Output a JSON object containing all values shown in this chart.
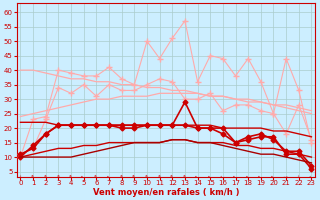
{
  "xlabel": "Vent moyen/en rafales ( km/h )",
  "bg_color": "#cceeff",
  "grid_color": "#aacccc",
  "x_ticks": [
    0,
    1,
    2,
    3,
    4,
    5,
    6,
    7,
    8,
    9,
    10,
    11,
    12,
    13,
    14,
    15,
    16,
    17,
    18,
    19,
    20,
    21,
    22,
    23
  ],
  "y_ticks": [
    5,
    10,
    15,
    20,
    25,
    30,
    35,
    40,
    45,
    50,
    55,
    60
  ],
  "ylim": [
    3,
    63
  ],
  "xlim": [
    -0.3,
    23.3
  ],
  "series": [
    {
      "name": "rafales_max",
      "color": "#ffaaaa",
      "linewidth": 0.8,
      "marker": "+",
      "markersize": 4,
      "data": [
        10,
        23,
        24,
        40,
        39,
        38,
        38,
        41,
        37,
        35,
        50,
        44,
        51,
        57,
        36,
        45,
        44,
        38,
        44,
        36,
        25,
        44,
        33,
        15
      ]
    },
    {
      "name": "rafales_line2",
      "color": "#ffaaaa",
      "linewidth": 0.8,
      "marker": "+",
      "markersize": 4,
      "data": [
        11,
        13,
        23,
        34,
        32,
        35,
        31,
        35,
        33,
        33,
        35,
        37,
        36,
        30,
        30,
        32,
        26,
        28,
        28,
        26,
        25,
        18,
        28,
        16
      ]
    },
    {
      "name": "trend_upper_light",
      "color": "#ffaaaa",
      "linewidth": 0.9,
      "marker": null,
      "markersize": 0,
      "data": [
        40,
        40,
        39,
        38,
        37,
        37,
        36,
        36,
        35,
        35,
        34,
        34,
        33,
        33,
        32,
        31,
        31,
        30,
        29,
        29,
        28,
        28,
        27,
        26
      ]
    },
    {
      "name": "trend_lower_light",
      "color": "#ffaaaa",
      "linewidth": 0.9,
      "marker": null,
      "markersize": 0,
      "data": [
        24,
        25,
        26,
        27,
        28,
        29,
        30,
        30,
        31,
        31,
        31,
        32,
        32,
        32,
        32,
        31,
        31,
        30,
        30,
        29,
        28,
        27,
        26,
        25
      ]
    },
    {
      "name": "vent_moyen_trend1",
      "color": "#cc0000",
      "linewidth": 1.0,
      "marker": null,
      "markersize": 0,
      "data": [
        22,
        22,
        22,
        21,
        21,
        21,
        21,
        21,
        21,
        21,
        21,
        21,
        21,
        21,
        21,
        21,
        20,
        20,
        20,
        20,
        19,
        19,
        18,
        17
      ]
    },
    {
      "name": "vent_moyen_trend2",
      "color": "#cc0000",
      "linewidth": 1.0,
      "marker": null,
      "markersize": 0,
      "data": [
        10,
        11,
        12,
        13,
        13,
        14,
        14,
        15,
        15,
        15,
        15,
        15,
        16,
        16,
        15,
        15,
        15,
        14,
        14,
        13,
        13,
        12,
        11,
        10
      ]
    },
    {
      "name": "vent_moyen_markers",
      "color": "#cc0000",
      "linewidth": 1.2,
      "marker": "D",
      "markersize": 2.5,
      "data": [
        10,
        14,
        18,
        21,
        21,
        21,
        21,
        21,
        20,
        20,
        21,
        21,
        21,
        29,
        20,
        20,
        20,
        15,
        17,
        18,
        16,
        12,
        12,
        7
      ]
    },
    {
      "name": "vent_moyen_line2",
      "color": "#cc0000",
      "linewidth": 1.2,
      "marker": "D",
      "markersize": 2.5,
      "data": [
        11,
        13,
        18,
        21,
        21,
        21,
        21,
        21,
        21,
        21,
        21,
        21,
        21,
        21,
        20,
        20,
        18,
        15,
        16,
        17,
        17,
        11,
        11,
        6
      ]
    },
    {
      "name": "bottom_dark",
      "color": "#aa0000",
      "linewidth": 1.0,
      "marker": null,
      "markersize": 0,
      "data": [
        10,
        10,
        10,
        10,
        10,
        11,
        12,
        13,
        14,
        15,
        15,
        15,
        16,
        16,
        15,
        15,
        14,
        13,
        12,
        11,
        11,
        10,
        9,
        8
      ]
    }
  ],
  "arrow_chars": [
    "↙",
    "↗",
    "↗",
    "↗",
    "↗",
    "↑",
    "↗",
    "↑",
    "↗",
    "↗",
    "↗",
    "↗",
    "↗",
    "↗",
    "↑",
    "↑",
    "↖",
    "↑",
    "↑",
    "⇘",
    "↓",
    "↘",
    "↖"
  ]
}
